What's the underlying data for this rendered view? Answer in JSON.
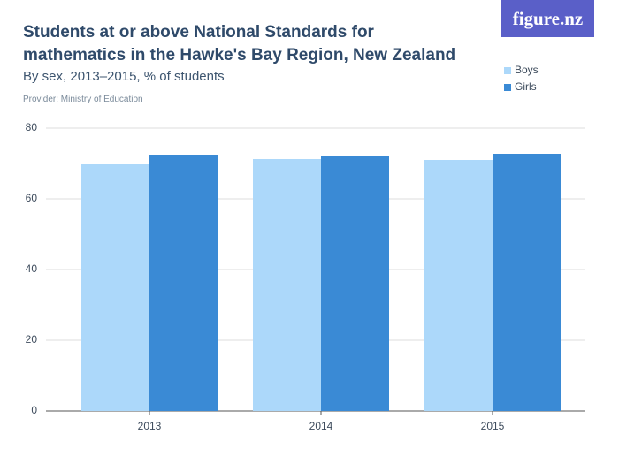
{
  "chart_data": {
    "type": "bar",
    "title": "Students at or above National Standards for mathematics in the Hawke's Bay Region, New Zealand",
    "subtitle": "By sex, 2013–2015, % of students",
    "provider": "Provider: Ministry of Education",
    "logo": "figure.nz",
    "categories": [
      "2013",
      "2014",
      "2015"
    ],
    "series": [
      {
        "name": "Boys",
        "color": "#acd8fa",
        "values": [
          70,
          71.25,
          71
        ]
      },
      {
        "name": "Girls",
        "color": "#3a8ad5",
        "values": [
          72.5,
          72.25,
          72.75
        ]
      }
    ],
    "ylim": [
      0,
      80
    ],
    "yticks": [
      0,
      20,
      40,
      60,
      80
    ],
    "grid": true,
    "legend": "top-right"
  }
}
